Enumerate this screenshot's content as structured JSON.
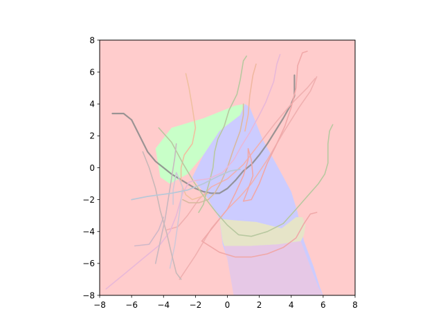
{
  "chart_data": {
    "type": "line",
    "title": "",
    "xlabel": "",
    "ylabel": "",
    "xlim": [
      -8,
      8
    ],
    "ylim": [
      -8,
      8
    ],
    "xticks": [
      -8,
      -6,
      -4,
      -2,
      0,
      2,
      4,
      6,
      8
    ],
    "yticks": [
      -8,
      -6,
      -4,
      -2,
      0,
      2,
      4,
      6,
      8
    ],
    "xtick_labels": [
      "−8",
      "−6",
      "−4",
      "−2",
      "0",
      "2",
      "4",
      "6",
      "8"
    ],
    "ytick_labels": [
      "−8",
      "−6",
      "−4",
      "−2",
      "0",
      "2",
      "4",
      "6",
      "8"
    ],
    "grid": false,
    "legend": "none",
    "background_color": "#ffcccc",
    "regions": [
      {
        "color": "#c8ffc8",
        "points": [
          [
            -4.5,
            1.2
          ],
          [
            -3.5,
            2.5
          ],
          [
            -2.5,
            2.8
          ],
          [
            -1.5,
            3.1
          ],
          [
            -0.5,
            3.5
          ],
          [
            0.5,
            3.9
          ],
          [
            1.1,
            4.0
          ],
          [
            0.8,
            3.3
          ],
          [
            -0.5,
            2.3
          ],
          [
            -1.5,
            0.8
          ],
          [
            -2.5,
            -0.4
          ],
          [
            -3.6,
            -1.0
          ],
          [
            -4.2,
            -0.6
          ]
        ]
      },
      {
        "color": "#ccccff",
        "points": [
          [
            -2.2,
            -0.6
          ],
          [
            -1.5,
            0.8
          ],
          [
            -0.5,
            2.3
          ],
          [
            0.8,
            3.3
          ],
          [
            1.1,
            4.0
          ],
          [
            1.4,
            3.8
          ],
          [
            2.2,
            1.8
          ],
          [
            3.3,
            -0.2
          ],
          [
            4.0,
            -1.5
          ],
          [
            4.4,
            -2.8
          ],
          [
            4.5,
            -3.3
          ],
          [
            4.8,
            -4.6
          ],
          [
            5.4,
            -6.2
          ],
          [
            5.8,
            -7.5
          ],
          [
            6.0,
            -8.0
          ],
          [
            0.4,
            -8.0
          ],
          [
            0.0,
            -5.7
          ],
          [
            -0.3,
            -4.8
          ],
          [
            -0.5,
            -3.2
          ],
          [
            -1.3,
            -1.8
          ]
        ]
      },
      {
        "color": "#e6e4c8",
        "points": [
          [
            -0.5,
            -3.2
          ],
          [
            0.5,
            -3.3
          ],
          [
            1.8,
            -3.4
          ],
          [
            2.6,
            -3.6
          ],
          [
            3.4,
            -3.8
          ],
          [
            4.3,
            -3.1
          ],
          [
            4.7,
            -3.1
          ],
          [
            4.9,
            -3.6
          ],
          [
            4.8,
            -4.2
          ],
          [
            4.6,
            -4.6
          ],
          [
            3.2,
            -4.8
          ],
          [
            1.5,
            -4.9
          ],
          [
            -0.2,
            -4.9
          ],
          [
            -0.3,
            -4.6
          ]
        ]
      },
      {
        "color": "#e6c8e6",
        "points": [
          [
            -0.2,
            -4.9
          ],
          [
            1.5,
            -4.9
          ],
          [
            3.2,
            -4.8
          ],
          [
            4.6,
            -4.6
          ],
          [
            5.2,
            -6.2
          ],
          [
            5.7,
            -7.5
          ],
          [
            6.0,
            -8.0
          ],
          [
            0.4,
            -8.0
          ],
          [
            0.0,
            -5.7
          ]
        ]
      }
    ],
    "series": [
      {
        "color": "#888888",
        "opacity": 0.85,
        "width": 2.2,
        "points": [
          [
            -7.2,
            3.4
          ],
          [
            -6.5,
            3.4
          ],
          [
            -6.0,
            3.0
          ],
          [
            -5.5,
            2.0
          ],
          [
            -5.0,
            1.0
          ],
          [
            -4.5,
            0.4
          ],
          [
            -4.0,
            0.0
          ],
          [
            -3.5,
            -0.4
          ],
          [
            -3.0,
            -0.7
          ],
          [
            -2.5,
            -1.0
          ],
          [
            -2.0,
            -1.3
          ],
          [
            -1.5,
            -1.5
          ],
          [
            -1.0,
            -1.6
          ],
          [
            -0.5,
            -1.6
          ],
          [
            0.0,
            -1.3
          ],
          [
            0.5,
            -0.8
          ],
          [
            1.0,
            -0.2
          ],
          [
            1.5,
            0.2
          ],
          [
            2.0,
            0.8
          ],
          [
            2.5,
            1.5
          ],
          [
            3.0,
            2.3
          ],
          [
            3.5,
            3.1
          ],
          [
            4.0,
            4.0
          ],
          [
            4.2,
            4.5
          ],
          [
            4.2,
            5.8
          ]
        ]
      },
      {
        "color": "#f0b0b0",
        "opacity": 1,
        "width": 1.6,
        "points": [
          [
            -3.8,
            -3.9
          ],
          [
            -3.1,
            -3.7
          ],
          [
            -2.5,
            -3.0
          ],
          [
            -1.8,
            -2.0
          ],
          [
            -1.0,
            -1.2
          ],
          [
            0.0,
            -0.7
          ],
          [
            1.0,
            0.2
          ],
          [
            2.0,
            1.5
          ],
          [
            3.0,
            2.8
          ],
          [
            4.0,
            4.0
          ],
          [
            5.0,
            5.0
          ],
          [
            5.5,
            5.6
          ]
        ]
      },
      {
        "color": "#f0b0b0",
        "opacity": 1,
        "width": 1.6,
        "points": [
          [
            -3.0,
            -7.0
          ],
          [
            -2.0,
            -5.5
          ],
          [
            -1.0,
            -3.8
          ],
          [
            0.0,
            -2.6
          ],
          [
            0.8,
            -1.8
          ],
          [
            1.5,
            -1.0
          ],
          [
            2.5,
            0.5
          ],
          [
            3.5,
            2.2
          ],
          [
            4.5,
            3.8
          ],
          [
            5.2,
            4.8
          ],
          [
            5.6,
            5.7
          ]
        ]
      },
      {
        "color": "#f0a8a8",
        "opacity": 1,
        "width": 1.6,
        "points": [
          [
            -1.6,
            -4.6
          ],
          [
            -0.5,
            -5.3
          ],
          [
            0.5,
            -5.6
          ],
          [
            1.5,
            -5.6
          ],
          [
            2.5,
            -5.4
          ],
          [
            3.5,
            -5.0
          ],
          [
            4.3,
            -4.4
          ],
          [
            4.8,
            -3.5
          ],
          [
            5.2,
            -2.9
          ],
          [
            5.6,
            -2.8
          ]
        ]
      },
      {
        "color": "#f0a8a8",
        "opacity": 1,
        "width": 1.6,
        "points": [
          [
            -1.6,
            -4.6
          ],
          [
            -0.8,
            -3.6
          ],
          [
            0.0,
            -2.6
          ],
          [
            0.5,
            -1.6
          ],
          [
            1.0,
            -0.5
          ],
          [
            1.3,
            0.5
          ],
          [
            1.3,
            1.2
          ],
          [
            1.5,
            0.5
          ],
          [
            1.6,
            -0.5
          ],
          [
            1.2,
            -1.6
          ],
          [
            1.0,
            -2.1
          ],
          [
            1.5,
            -2.0
          ],
          [
            2.0,
            -1.0
          ],
          [
            2.5,
            0.3
          ],
          [
            3.0,
            1.3
          ],
          [
            3.6,
            2.6
          ],
          [
            4.0,
            3.8
          ],
          [
            4.3,
            5.0
          ],
          [
            4.4,
            6.4
          ],
          [
            4.7,
            7.2
          ],
          [
            5.0,
            7.3
          ]
        ]
      },
      {
        "color": "#f0c0a0",
        "opacity": 1,
        "width": 1.6,
        "points": [
          [
            -2.6,
            5.9
          ],
          [
            -2.4,
            5.0
          ],
          [
            -2.2,
            3.8
          ],
          [
            -2.0,
            2.5
          ],
          [
            -2.2,
            1.5
          ],
          [
            -2.7,
            0.8
          ],
          [
            -2.9,
            0.0
          ],
          [
            -2.9,
            -1.0
          ],
          [
            -2.6,
            -1.7
          ],
          [
            -2.2,
            -2.0
          ],
          [
            -1.6,
            -1.8
          ],
          [
            -1.2,
            -1.6
          ]
        ]
      },
      {
        "color": "#f0b8a0",
        "opacity": 1,
        "width": 1.6,
        "points": [
          [
            1.8,
            6.5
          ],
          [
            1.6,
            5.8
          ],
          [
            1.4,
            4.5
          ],
          [
            1.3,
            3.3
          ],
          [
            1.1,
            2.3
          ]
        ]
      },
      {
        "color": "#d8b8a0",
        "opacity": 1,
        "width": 1.6,
        "points": [
          [
            -2.8,
            -2.0
          ],
          [
            -2.4,
            -2.2
          ],
          [
            -1.8,
            -2.2
          ],
          [
            -1.2,
            -2.0
          ],
          [
            -0.8,
            -1.6
          ],
          [
            -0.4,
            -0.9
          ],
          [
            0.0,
            0.0
          ],
          [
            0.4,
            1.2
          ],
          [
            0.8,
            2.3
          ],
          [
            1.0,
            3.3
          ],
          [
            1.0,
            4.0
          ]
        ]
      },
      {
        "color": "#b8c8a0",
        "opacity": 1,
        "width": 1.6,
        "points": [
          [
            1.2,
            7.0
          ],
          [
            1.0,
            6.7
          ],
          [
            0.8,
            5.5
          ],
          [
            0.6,
            4.6
          ],
          [
            0.1,
            3.6
          ],
          [
            -0.2,
            2.6
          ],
          [
            -0.6,
            1.8
          ],
          [
            -0.8,
            1.0
          ],
          [
            -0.9,
            0.0
          ],
          [
            -1.1,
            -0.8
          ],
          [
            -1.3,
            -1.5
          ],
          [
            -1.5,
            -2.3
          ],
          [
            -1.8,
            -2.8
          ]
        ]
      },
      {
        "color": "#b8c8a0",
        "opacity": 1,
        "width": 1.6,
        "points": [
          [
            -4.3,
            2.5
          ],
          [
            -3.5,
            1.6
          ],
          [
            -2.8,
            0.3
          ],
          [
            -2.1,
            -0.9
          ],
          [
            -1.4,
            -1.9
          ],
          [
            -0.7,
            -2.8
          ],
          [
            0.0,
            -3.6
          ],
          [
            0.7,
            -4.2
          ],
          [
            1.5,
            -4.3
          ],
          [
            2.5,
            -4.0
          ],
          [
            3.5,
            -3.5
          ],
          [
            4.3,
            -2.6
          ],
          [
            5.0,
            -1.8
          ],
          [
            5.7,
            -1.0
          ],
          [
            6.1,
            -0.4
          ],
          [
            6.3,
            0.3
          ],
          [
            6.3,
            1.5
          ],
          [
            6.4,
            2.3
          ],
          [
            6.6,
            2.7
          ]
        ]
      },
      {
        "color": "#d0b8c8",
        "opacity": 1,
        "width": 1.6,
        "points": [
          [
            -5.8,
            -4.9
          ],
          [
            -4.9,
            -4.8
          ],
          [
            -4.3,
            -3.9
          ],
          [
            -4.0,
            -3.1
          ]
        ]
      },
      {
        "color": "#e8b8d8",
        "opacity": 1,
        "width": 1.6,
        "points": [
          [
            -7.6,
            -7.6
          ],
          [
            -6.5,
            -6.7
          ],
          [
            -5.3,
            -5.7
          ],
          [
            -4.2,
            -4.8
          ],
          [
            -3.6,
            -4.0
          ],
          [
            -3.2,
            -3.0
          ],
          [
            -2.8,
            -1.6
          ],
          [
            -2.4,
            -0.9
          ],
          [
            -2.0,
            -0.8
          ],
          [
            -1.2,
            -0.7
          ],
          [
            -0.3,
            -0.3
          ],
          [
            0.4,
            0.5
          ],
          [
            0.9,
            1.4
          ],
          [
            1.4,
            2.2
          ],
          [
            2.0,
            3.3
          ],
          [
            2.4,
            4.1
          ],
          [
            2.9,
            5.4
          ],
          [
            3.1,
            6.5
          ],
          [
            3.3,
            7.1
          ]
        ]
      },
      {
        "color": "#d0c8d8",
        "opacity": 1,
        "width": 1.6,
        "points": [
          [
            -3.4,
            -2.3
          ],
          [
            -3.4,
            -1.4
          ],
          [
            -3.2,
            -0.3
          ],
          [
            -2.8,
            -1.2
          ],
          [
            -3.0,
            -2.8
          ],
          [
            -3.3,
            -4.9
          ],
          [
            -3.6,
            -6.3
          ]
        ]
      },
      {
        "color": "#c8b8b8",
        "opacity": 1,
        "width": 1.6,
        "points": [
          [
            -5.3,
            1.0
          ],
          [
            -4.9,
            0.0
          ],
          [
            -4.5,
            -1.3
          ],
          [
            -4.2,
            -2.7
          ],
          [
            -3.8,
            -4.1
          ],
          [
            -3.5,
            -5.4
          ],
          [
            -3.2,
            -6.6
          ],
          [
            -2.9,
            -7.0
          ]
        ]
      },
      {
        "color": "#c8b8c0",
        "opacity": 1,
        "width": 1.6,
        "points": [
          [
            -3.2,
            1.5
          ],
          [
            -3.3,
            0.6
          ],
          [
            -3.6,
            -1.3
          ],
          [
            -3.9,
            -3.2
          ],
          [
            -4.2,
            -4.6
          ],
          [
            -4.5,
            -6.0
          ]
        ]
      },
      {
        "color": "#b8c8d8",
        "opacity": 1,
        "width": 1.8,
        "points": [
          [
            -6.0,
            -2.0
          ],
          [
            -5.0,
            -1.8
          ],
          [
            -3.5,
            -1.6
          ],
          [
            -2.5,
            -1.4
          ],
          [
            -1.5,
            -1.0
          ],
          [
            -0.5,
            -0.5
          ],
          [
            0.2,
            -0.2
          ],
          [
            0.8,
            -0.1
          ]
        ]
      }
    ]
  }
}
